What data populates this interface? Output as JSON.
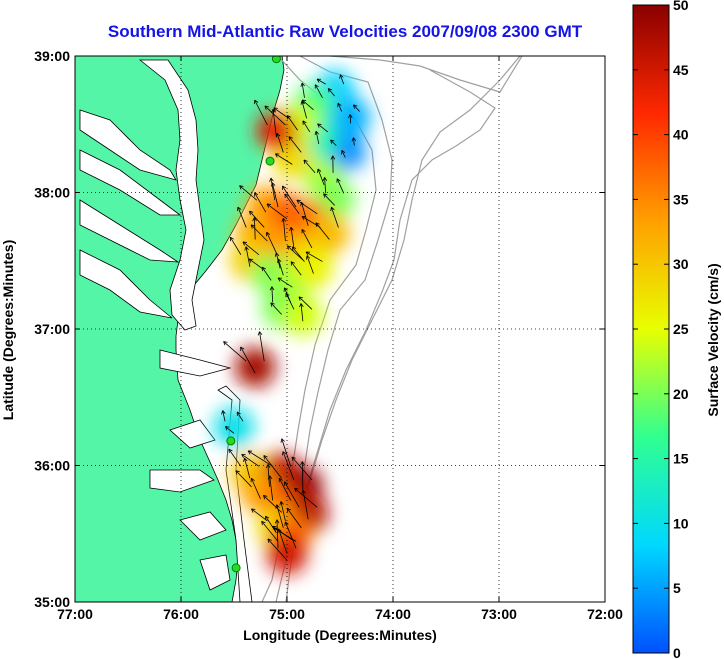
{
  "title": "Southern Mid-Atlantic Raw Velocities 2007/09/08 2300 GMT",
  "x_axis": {
    "label": "Longitude (Degrees:Minutes)",
    "range": [
      -77,
      -72
    ],
    "ticks": [
      {
        "value": -77,
        "label": "77:00"
      },
      {
        "value": -76,
        "label": "76:00"
      },
      {
        "value": -75,
        "label": "75:00"
      },
      {
        "value": -74,
        "label": "74:00"
      },
      {
        "value": -73,
        "label": "73:00"
      },
      {
        "value": -72,
        "label": "72:00"
      }
    ]
  },
  "y_axis": {
    "label": "Latitude (Degrees:Minutes)",
    "range": [
      35,
      39
    ],
    "ticks": [
      {
        "value": 39,
        "label": "39:00"
      },
      {
        "value": 38,
        "label": "38:00"
      },
      {
        "value": 37,
        "label": "37:00"
      },
      {
        "value": 36,
        "label": "36:00"
      },
      {
        "value": 35,
        "label": "35:00"
      }
    ]
  },
  "colorbar": {
    "label": "Surface Velocity (cm/s)",
    "range": [
      0,
      50
    ],
    "ticks": [
      "0",
      "5",
      "10",
      "15",
      "20",
      "25",
      "30",
      "35",
      "40",
      "45",
      "50"
    ],
    "stops": [
      "#0050ff",
      "#00d8ff",
      "#30ff90",
      "#e8ff00",
      "#ffa000",
      "#ff2800",
      "#8a0000"
    ]
  },
  "colors": {
    "land": "#55f5a8",
    "ocean": "#ffffff",
    "coastline": "#000000",
    "isobath": "#a0a0a0",
    "title": "#1414e6",
    "station": "#22dd22"
  },
  "stations": [
    {
      "lon": -75.1,
      "lat": 38.98
    },
    {
      "lon": -75.16,
      "lat": 38.23
    },
    {
      "lon": -75.53,
      "lat": 36.18
    },
    {
      "lon": -75.48,
      "lat": 35.25
    }
  ],
  "velocity_field": [
    {
      "lon": -74.55,
      "lat": 38.75,
      "speed": 8
    },
    {
      "lon": -74.4,
      "lat": 38.55,
      "speed": 6
    },
    {
      "lon": -74.45,
      "lat": 38.3,
      "speed": 4
    },
    {
      "lon": -74.75,
      "lat": 38.65,
      "speed": 18
    },
    {
      "lon": -74.7,
      "lat": 38.4,
      "speed": 14
    },
    {
      "lon": -74.9,
      "lat": 38.5,
      "speed": 24
    },
    {
      "lon": -74.95,
      "lat": 38.25,
      "speed": 28
    },
    {
      "lon": -74.65,
      "lat": 38.1,
      "speed": 22
    },
    {
      "lon": -74.55,
      "lat": 37.95,
      "speed": 20
    },
    {
      "lon": -75.1,
      "lat": 38.45,
      "speed": 44
    },
    {
      "lon": -75.2,
      "lat": 37.9,
      "speed": 33
    },
    {
      "lon": -75.0,
      "lat": 37.85,
      "speed": 38
    },
    {
      "lon": -74.8,
      "lat": 37.8,
      "speed": 37
    },
    {
      "lon": -74.6,
      "lat": 37.7,
      "speed": 31
    },
    {
      "lon": -75.3,
      "lat": 37.7,
      "speed": 32
    },
    {
      "lon": -75.1,
      "lat": 37.6,
      "speed": 34
    },
    {
      "lon": -74.85,
      "lat": 37.55,
      "speed": 30
    },
    {
      "lon": -75.35,
      "lat": 37.5,
      "speed": 29
    },
    {
      "lon": -75.15,
      "lat": 37.4,
      "speed": 20
    },
    {
      "lon": -74.95,
      "lat": 37.35,
      "speed": 22
    },
    {
      "lon": -74.75,
      "lat": 37.45,
      "speed": 26
    },
    {
      "lon": -75.05,
      "lat": 37.15,
      "speed": 20
    },
    {
      "lon": -74.85,
      "lat": 37.1,
      "speed": 24
    },
    {
      "lon": -75.3,
      "lat": 36.72,
      "speed": 48
    },
    {
      "lon": -75.5,
      "lat": 36.28,
      "speed": 10
    },
    {
      "lon": -75.35,
      "lat": 35.95,
      "speed": 30
    },
    {
      "lon": -75.05,
      "lat": 35.95,
      "speed": 46
    },
    {
      "lon": -74.85,
      "lat": 35.85,
      "speed": 49
    },
    {
      "lon": -75.25,
      "lat": 35.8,
      "speed": 33
    },
    {
      "lon": -75.05,
      "lat": 35.7,
      "speed": 38
    },
    {
      "lon": -74.8,
      "lat": 35.65,
      "speed": 47
    },
    {
      "lon": -75.1,
      "lat": 35.55,
      "speed": 28
    },
    {
      "lon": -74.95,
      "lat": 35.5,
      "speed": 36
    },
    {
      "lon": -75.0,
      "lat": 35.4,
      "speed": 40
    },
    {
      "lon": -75.0,
      "lat": 35.35,
      "speed": 45
    }
  ]
}
